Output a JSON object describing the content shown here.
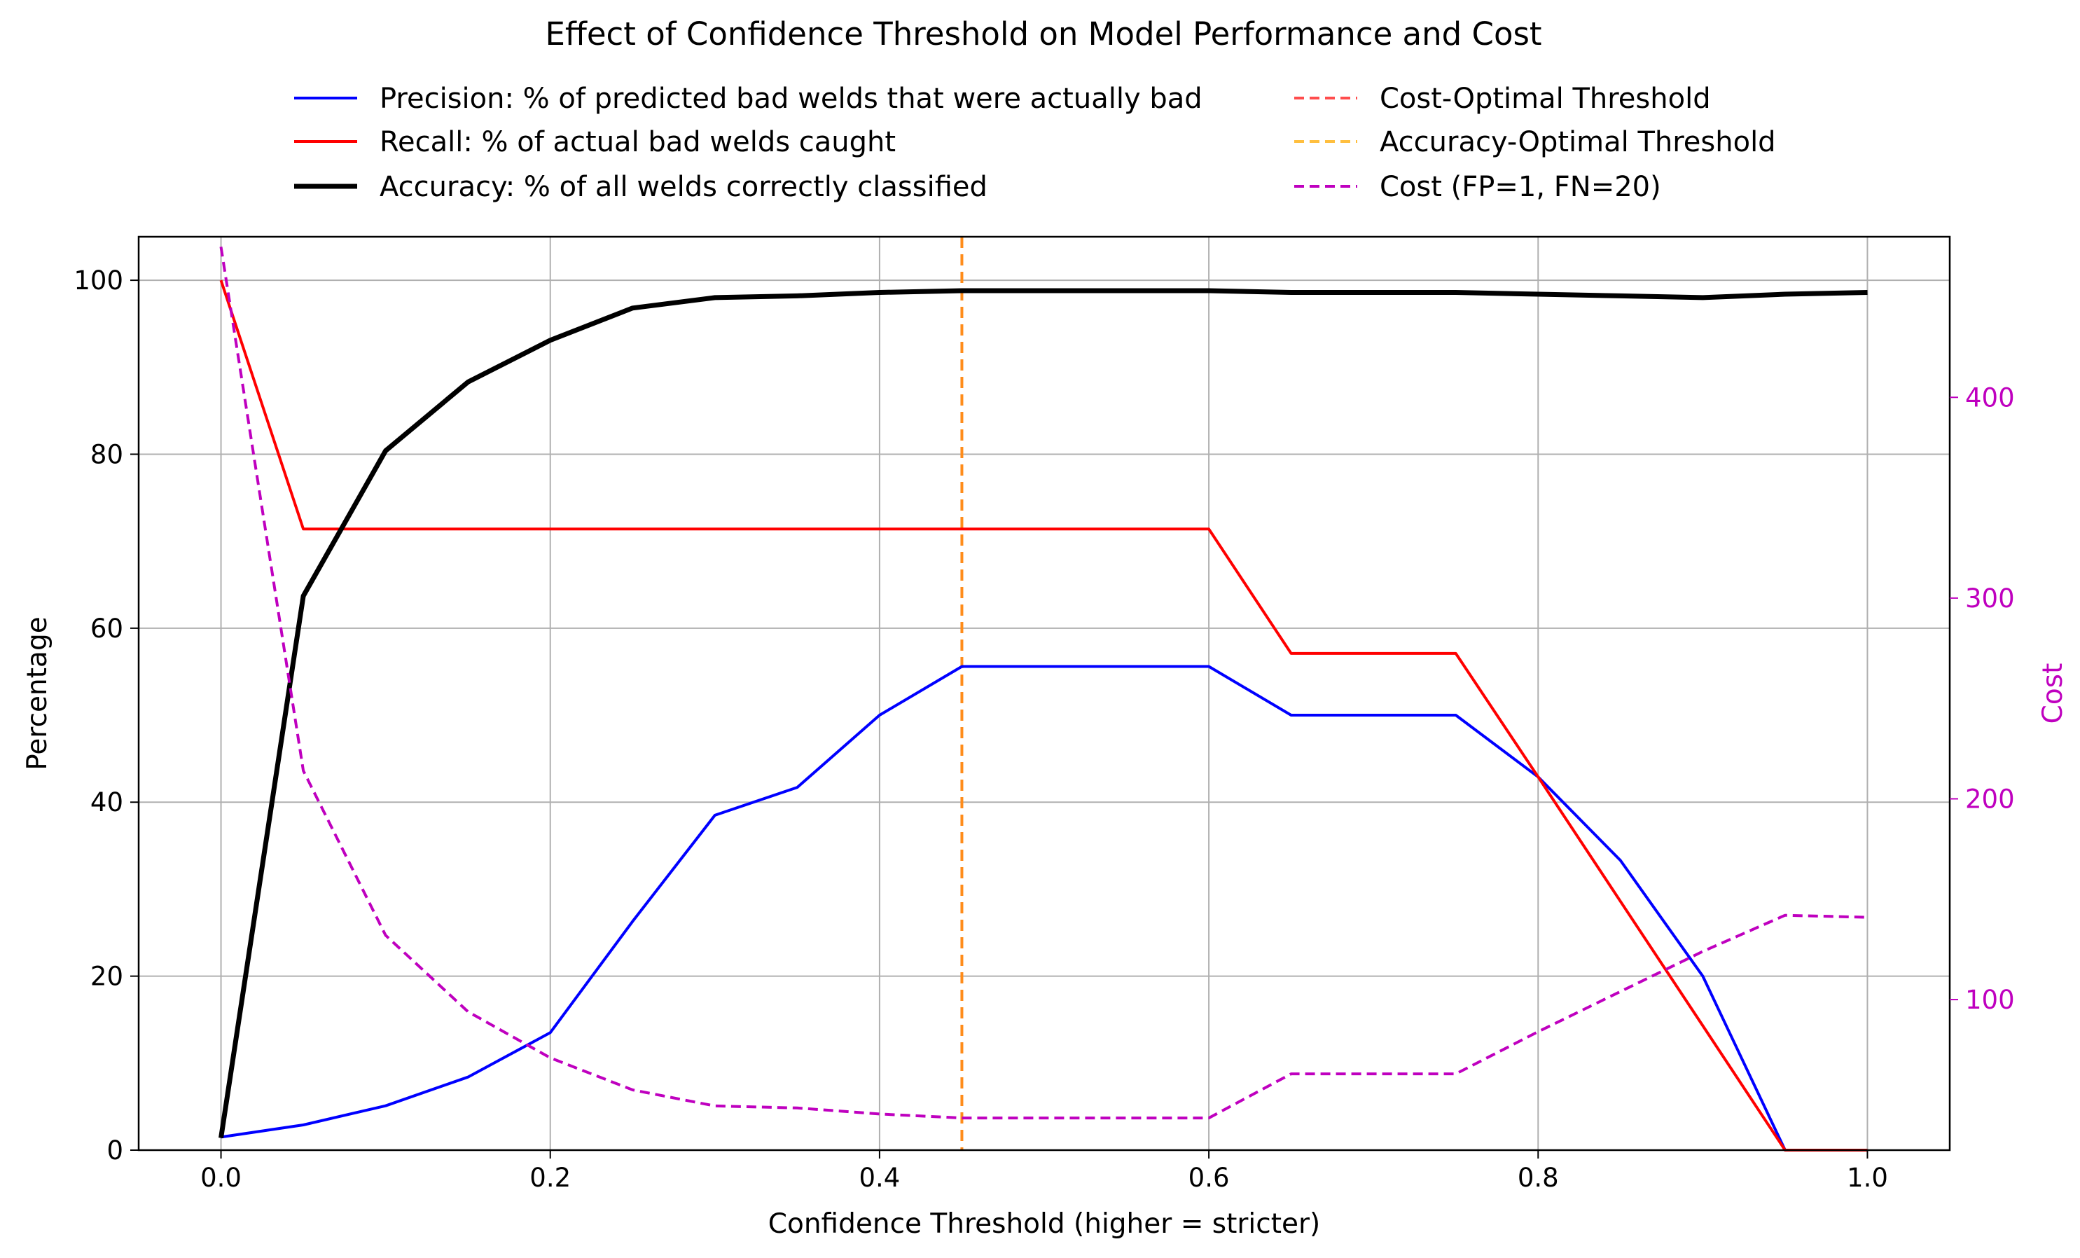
{
  "chart_data": {
    "type": "line",
    "title": "Effect of Confidence Threshold on Model Performance and Cost",
    "xlabel": "Confidence Threshold (higher = stricter)",
    "ylabel": "Percentage",
    "y2label": "Cost",
    "xlim": [
      -0.05,
      1.05
    ],
    "ylim": [
      0,
      105
    ],
    "y2lim": [
      25,
      480
    ],
    "xticks": [
      "0.0",
      "0.2",
      "0.4",
      "0.6",
      "0.8",
      "1.0"
    ],
    "xtick_values": [
      0,
      0.2,
      0.4,
      0.6,
      0.8,
      1.0
    ],
    "yticks": [
      "0",
      "20",
      "40",
      "60",
      "80",
      "100"
    ],
    "ytick_values": [
      0,
      20,
      40,
      60,
      80,
      100
    ],
    "y2ticks": [
      "100",
      "200",
      "300",
      "400"
    ],
    "y2tick_values": [
      100,
      200,
      300,
      400
    ],
    "grid": true,
    "legend_position": "top-center",
    "x": [
      0,
      0.05,
      0.1,
      0.15,
      0.2,
      0.25,
      0.3,
      0.35,
      0.4,
      0.45,
      0.5,
      0.55,
      0.6,
      0.65,
      0.7,
      0.75,
      0.8,
      0.85,
      0.9,
      0.95,
      1.0
    ],
    "series": [
      {
        "name": "Precision: % of predicted bad welds that were actually bad",
        "color": "#0000ff",
        "style": "solid",
        "axis": "left",
        "values": [
          1.5,
          2.9,
          5.1,
          8.4,
          13.5,
          26.3,
          38.5,
          41.7,
          50.0,
          55.6,
          55.6,
          55.6,
          55.6,
          50.0,
          50.0,
          50.0,
          42.9,
          33.3,
          20.0,
          0,
          0
        ]
      },
      {
        "name": "Recall: % of actual bad welds caught",
        "color": "#ff0000",
        "style": "solid",
        "axis": "left",
        "values": [
          100,
          71.4,
          71.4,
          71.4,
          71.4,
          71.4,
          71.4,
          71.4,
          71.4,
          71.4,
          71.4,
          71.4,
          71.4,
          57.1,
          57.1,
          57.1,
          42.9,
          28.6,
          14.3,
          0,
          0
        ]
      },
      {
        "name": "Accuracy: % of all welds correctly classified",
        "color": "#000000",
        "style": "solid-thick",
        "axis": "left",
        "values": [
          1.4,
          63.7,
          80.4,
          88.3,
          93.1,
          96.8,
          98.0,
          98.2,
          98.6,
          98.8,
          98.8,
          98.8,
          98.8,
          98.6,
          98.6,
          98.6,
          98.4,
          98.2,
          98.0,
          98.4,
          98.6
        ]
      },
      {
        "name": "Cost (FP=1, FN=20)",
        "color": "#bf00bf",
        "style": "dashed",
        "axis": "right",
        "values": [
          475,
          214,
          132,
          94,
          71,
          55,
          47,
          46,
          43,
          41,
          41,
          41,
          41,
          63,
          63,
          63,
          84,
          104,
          124,
          142,
          141
        ]
      }
    ],
    "vlines": [
      {
        "name": "Cost-Optimal Threshold",
        "color": "#ff4d4d",
        "x": 0.45
      },
      {
        "name": "Accuracy-Optimal Threshold",
        "color": "#ffbf3f",
        "x": 0.45
      }
    ],
    "visible_vline_color": "#ff8c1a",
    "right_axis_color": "#bf00bf"
  }
}
